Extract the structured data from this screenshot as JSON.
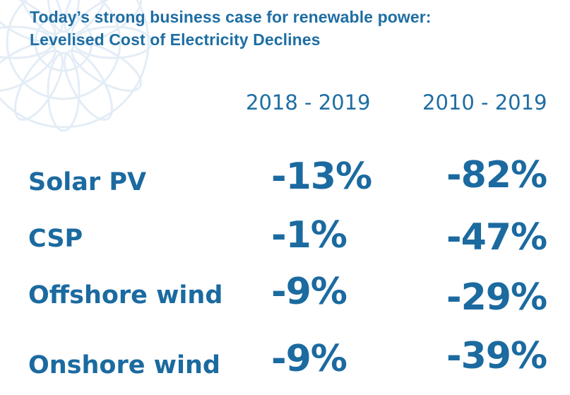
{
  "title": {
    "line1": "Today’s strong business case for renewable power:",
    "line2": "Levelised Cost of Electricity Declines"
  },
  "columns": [
    "2018 - 2019",
    "2010 - 2019"
  ],
  "rows": [
    {
      "label": "Solar PV",
      "values": [
        "-13%",
        "-82%"
      ]
    },
    {
      "label": "CSP",
      "values": [
        "-1%",
        "-47%"
      ]
    },
    {
      "label": "Offshore wind",
      "values": [
        "-9%",
        "-29%"
      ]
    },
    {
      "label": "Onshore wind",
      "values": [
        "-9%",
        "-39%"
      ]
    }
  ],
  "colors": {
    "title": "#1f6ea3",
    "text": "#1b6aa0",
    "decoration": "#cfe0f0"
  },
  "decoration_icon": "snowflake-pattern"
}
